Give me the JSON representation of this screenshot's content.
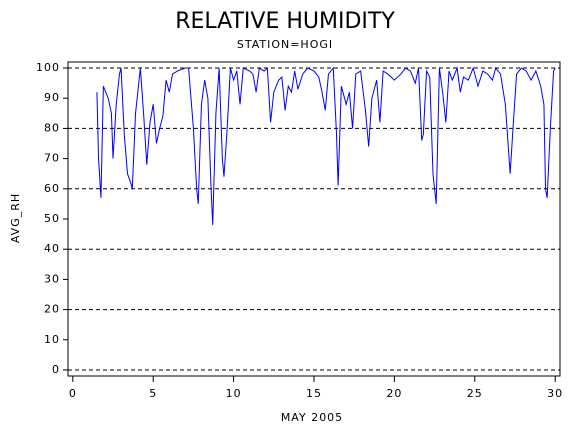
{
  "chart_data": {
    "type": "line",
    "title": "RELATIVE HUMIDITY",
    "subtitle": "STATION=HOGI",
    "x_label": "MAY 2005",
    "y_label": "AVG_RH",
    "xlim": [
      -0.3,
      30.3
    ],
    "ylim": [
      -2,
      102
    ],
    "xticks": [
      0,
      5,
      10,
      15,
      20,
      25,
      30
    ],
    "yticks": [
      0,
      10,
      20,
      30,
      40,
      50,
      60,
      70,
      80,
      90,
      100
    ],
    "grid_values": [
      0,
      20,
      40,
      60,
      80,
      100
    ],
    "grid": true,
    "series": [
      {
        "name": "AVG_RH",
        "color": "#0000ff",
        "x": [
          1.5,
          1.6,
          1.75,
          1.9,
          2.2,
          2.4,
          2.5,
          2.7,
          2.9,
          3.0,
          3.2,
          3.4,
          3.6,
          3.7,
          3.9,
          4.2,
          4.4,
          4.6,
          4.8,
          5.0,
          5.2,
          5.4,
          5.6,
          5.8,
          6.0,
          6.2,
          6.5,
          7.0,
          7.2,
          7.5,
          7.7,
          7.8,
          8.0,
          8.2,
          8.4,
          8.6,
          8.7,
          8.9,
          9.1,
          9.3,
          9.4,
          9.6,
          9.8,
          10.0,
          10.2,
          10.4,
          10.6,
          11.0,
          11.2,
          11.4,
          11.6,
          11.9,
          12.1,
          12.3,
          12.5,
          12.8,
          13.0,
          13.2,
          13.4,
          13.6,
          13.8,
          14.0,
          14.3,
          14.6,
          15.0,
          15.3,
          15.5,
          15.7,
          15.9,
          16.2,
          16.4,
          16.5,
          16.7,
          17.0,
          17.2,
          17.4,
          17.6,
          17.9,
          18.2,
          18.4,
          18.6,
          18.9,
          19.1,
          19.3,
          19.6,
          20.0,
          20.4,
          20.7,
          21.0,
          21.3,
          21.5,
          21.7,
          21.8,
          22.0,
          22.2,
          22.4,
          22.6,
          22.8,
          23.0,
          23.2,
          23.4,
          23.6,
          23.9,
          24.1,
          24.3,
          24.6,
          24.9,
          25.2,
          25.5,
          25.8,
          26.1,
          26.3,
          26.6,
          26.9,
          27.2,
          27.4,
          27.6,
          27.9,
          28.2,
          28.5,
          28.8,
          29.1,
          29.3,
          29.4,
          29.5,
          29.7,
          29.9,
          30.0
        ],
        "values": [
          92,
          70,
          57,
          94,
          90,
          85,
          70,
          88,
          98,
          100,
          78,
          65,
          62,
          60,
          85,
          100,
          85,
          68,
          82,
          88,
          75,
          80,
          84,
          96,
          92,
          98,
          99,
          100,
          100,
          80,
          60,
          55,
          88,
          96,
          90,
          60,
          48,
          85,
          100,
          70,
          64,
          80,
          100,
          96,
          99,
          88,
          100,
          99,
          98,
          92,
          100,
          99,
          100,
          82,
          92,
          96,
          97,
          86,
          94,
          92,
          99,
          93,
          98,
          100,
          99,
          97,
          92,
          86,
          98,
          100,
          78,
          61,
          94,
          88,
          92,
          80,
          98,
          99,
          86,
          74,
          90,
          96,
          82,
          99,
          98,
          96,
          98,
          100,
          99,
          95,
          100,
          76,
          78,
          99,
          97,
          65,
          55,
          100,
          92,
          82,
          99,
          96,
          100,
          92,
          97,
          96,
          100,
          94,
          99,
          98,
          96,
          100,
          98,
          88,
          65,
          82,
          98,
          100,
          99,
          96,
          99,
          94,
          88,
          60,
          57,
          80,
          99,
          100
        ]
      }
    ]
  }
}
